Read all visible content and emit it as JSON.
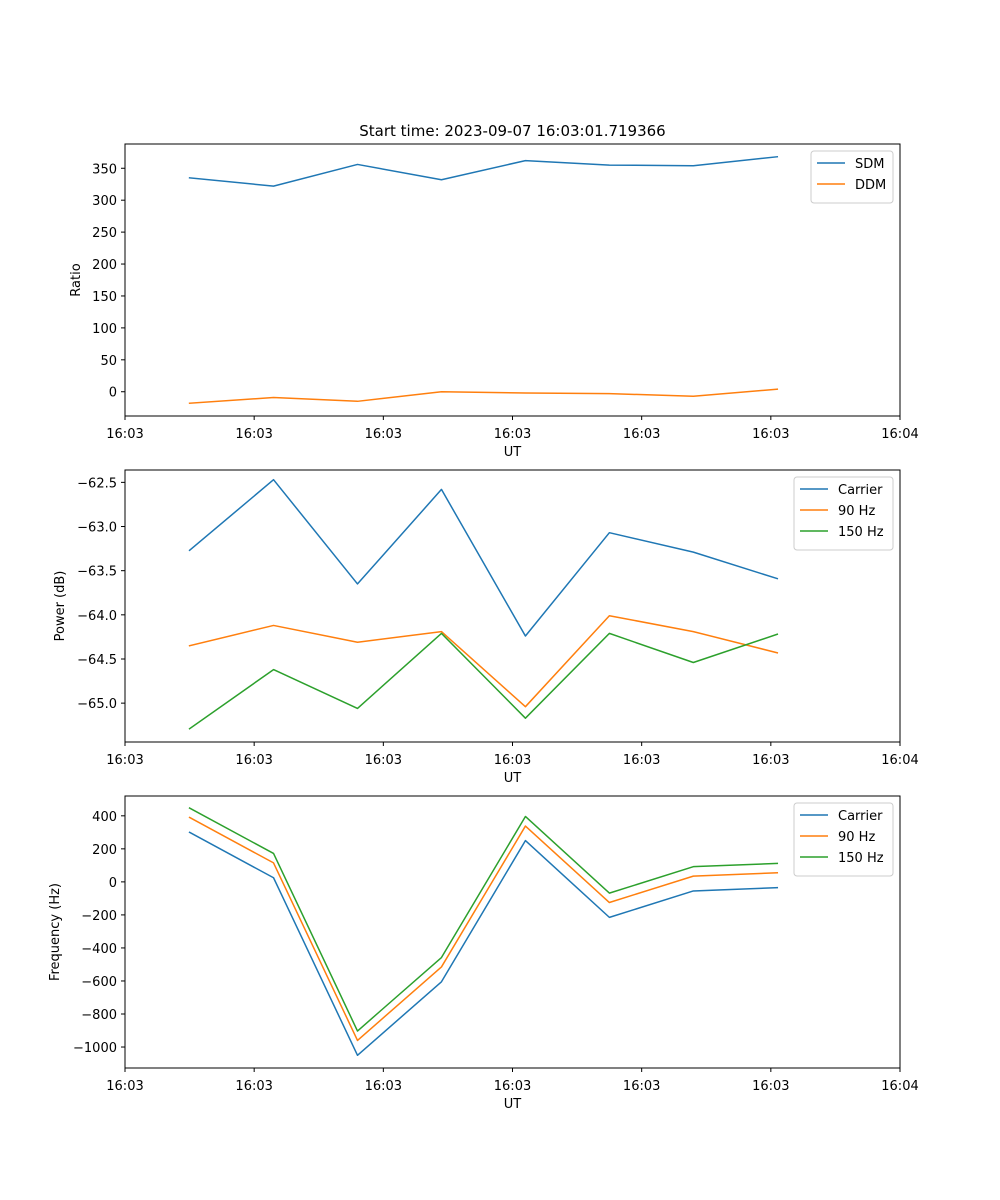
{
  "figure": {
    "title": "Start time: 2023-09-07 16:03:01.719366"
  },
  "chart_data": [
    {
      "type": "line",
      "title": "Start time: 2023-09-07 16:03:01.719366",
      "xlabel": "UT",
      "ylabel": "Ratio",
      "x_ticks": [
        "16:03",
        "16:03",
        "16:03",
        "16:03",
        "16:03",
        "16:03",
        "16:04"
      ],
      "x_range": [
        0,
        12
      ],
      "x": [
        1,
        2.3,
        3.6,
        4.9,
        6.2,
        7.5,
        8.8,
        10.1
      ],
      "ylim": [
        -38,
        388
      ],
      "y_ticks": [
        0,
        50,
        100,
        150,
        200,
        250,
        300,
        350
      ],
      "legend_position": "top-right",
      "series": [
        {
          "name": "SDM",
          "color": "#1f77b4",
          "values": [
            335,
            322,
            356,
            332,
            362,
            355,
            354,
            368
          ]
        },
        {
          "name": "DDM",
          "color": "#ff7f0e",
          "values": [
            -18,
            -9,
            -15,
            0,
            -2,
            -3,
            -7,
            4
          ]
        }
      ]
    },
    {
      "type": "line",
      "xlabel": "UT",
      "ylabel": "Power (dB)",
      "x_ticks": [
        "16:03",
        "16:03",
        "16:03",
        "16:03",
        "16:03",
        "16:03",
        "16:04"
      ],
      "x_range": [
        0,
        12
      ],
      "x": [
        1,
        2.3,
        3.6,
        4.9,
        6.2,
        7.5,
        8.8,
        10.1
      ],
      "ylim": [
        -65.44,
        -62.36
      ],
      "y_ticks": [
        -65.0,
        -64.5,
        -64.0,
        -63.5,
        -63.0,
        -62.5
      ],
      "y_tick_labels": [
        "−65.0",
        "−64.5",
        "−64.0",
        "−63.5",
        "−63.0",
        "−62.5"
      ],
      "legend_position": "top-right",
      "series": [
        {
          "name": "Carrier",
          "color": "#1f77b4",
          "values": [
            -63.27,
            -62.47,
            -63.65,
            -62.58,
            -64.24,
            -63.07,
            -63.29,
            -63.59
          ]
        },
        {
          "name": "90 Hz",
          "color": "#ff7f0e",
          "values": [
            -64.35,
            -64.12,
            -64.31,
            -64.19,
            -65.04,
            -64.01,
            -64.19,
            -64.43
          ]
        },
        {
          "name": "150 Hz",
          "color": "#2ca02c",
          "values": [
            -65.29,
            -64.62,
            -65.06,
            -64.21,
            -65.17,
            -64.21,
            -64.54,
            -64.22
          ]
        }
      ]
    },
    {
      "type": "line",
      "xlabel": "UT",
      "ylabel": "Frequency (Hz)",
      "x_ticks": [
        "16:03",
        "16:03",
        "16:03",
        "16:03",
        "16:03",
        "16:03",
        "16:04"
      ],
      "x_range": [
        0,
        12
      ],
      "x": [
        1,
        2.3,
        3.6,
        4.9,
        6.2,
        7.5,
        8.8,
        10.1
      ],
      "ylim": [
        -1127,
        520
      ],
      "y_ticks": [
        -1000,
        -800,
        -600,
        -400,
        -200,
        0,
        200,
        400
      ],
      "y_tick_labels": [
        "−1000",
        "−800",
        "−600",
        "−400",
        "−200",
        "0",
        "200",
        "400"
      ],
      "legend_position": "top-right",
      "series": [
        {
          "name": "Carrier",
          "color": "#1f77b4",
          "values": [
            300,
            25,
            -1050,
            -605,
            250,
            -215,
            -55,
            -35
          ]
        },
        {
          "name": "90 Hz",
          "color": "#ff7f0e",
          "values": [
            390,
            115,
            -960,
            -515,
            338,
            -125,
            35,
            55
          ]
        },
        {
          "name": "150 Hz",
          "color": "#2ca02c",
          "values": [
            447,
            172,
            -903,
            -458,
            396,
            -68,
            92,
            112
          ]
        }
      ]
    }
  ]
}
